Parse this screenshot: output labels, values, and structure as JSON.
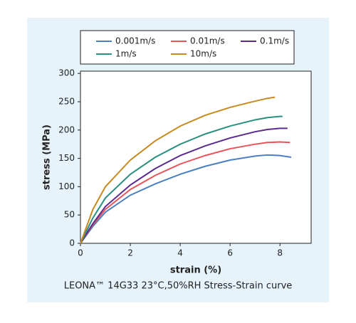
{
  "chart_data": {
    "type": "line",
    "xlabel": "strain (%)",
    "ylabel": "stress (MPa)",
    "caption": "LEONA™ 14G33 23°C,50%RH Stress-Strain curve",
    "xlim": [
      0,
      9.25
    ],
    "ylim": [
      0,
      304
    ],
    "xticks": [
      0,
      2,
      4,
      6,
      8
    ],
    "yticks": [
      0,
      50,
      100,
      150,
      200,
      250,
      300
    ],
    "legend": "top",
    "series": [
      {
        "name": "0.001m/s",
        "color": "#4a7fc1",
        "x": [
          0,
          0.5,
          1,
          2,
          3,
          4,
          5,
          6,
          7,
          7.5,
          8,
          8.45
        ],
        "values": [
          0,
          30,
          55,
          85,
          105,
          122,
          136,
          147,
          154,
          156,
          155,
          152
        ]
      },
      {
        "name": "0.01m/s",
        "color": "#e8545a",
        "x": [
          0,
          0.5,
          1,
          2,
          3,
          4,
          5,
          6,
          7,
          7.5,
          8,
          8.4
        ],
        "values": [
          0,
          33,
          60,
          95,
          120,
          140,
          155,
          167,
          175,
          178,
          179,
          178
        ]
      },
      {
        "name": "0.1m/s",
        "color": "#5b2a8c",
        "x": [
          0,
          0.5,
          1,
          2,
          3,
          4,
          5,
          6,
          7,
          7.5,
          8,
          8.3
        ],
        "values": [
          0,
          35,
          65,
          103,
          132,
          155,
          172,
          186,
          197,
          201,
          203,
          203
        ]
      },
      {
        "name": "1m/s",
        "color": "#2a8f7f",
        "x": [
          0,
          0.5,
          1,
          2,
          3,
          4,
          5,
          6,
          7,
          7.5,
          8,
          8.1
        ],
        "values": [
          0,
          45,
          80,
          122,
          152,
          175,
          193,
          207,
          218,
          222,
          224,
          224
        ]
      },
      {
        "name": "10m/s",
        "color": "#c68a1e",
        "x": [
          0,
          0.5,
          1,
          2,
          3,
          4,
          5,
          6,
          7,
          7.5,
          7.8
        ],
        "values": [
          0,
          60,
          100,
          147,
          181,
          207,
          226,
          240,
          251,
          256,
          258
        ]
      }
    ]
  }
}
